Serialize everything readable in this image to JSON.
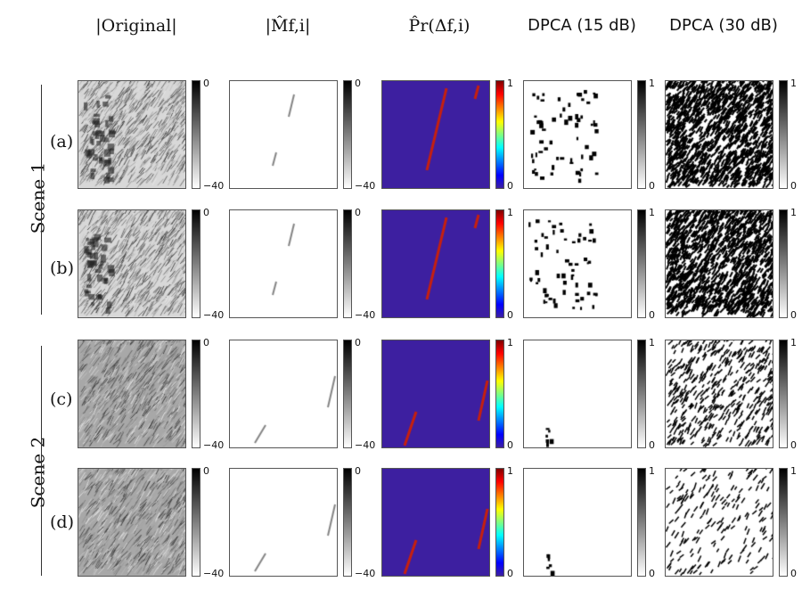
{
  "column_titles": [
    "|Original|",
    "|M̂f,i|",
    "P̂r(Δf,i)",
    "DPCA (15 dB)",
    "DPCA (30 dB)"
  ],
  "scenes": [
    {
      "label": "Scene 1",
      "rows": [
        "(a)",
        "(b)"
      ]
    },
    {
      "label": "Scene 2",
      "rows": [
        "(c)",
        "(d)"
      ]
    }
  ],
  "colorbars": {
    "db": {
      "top": "0",
      "bottom": "−40"
    },
    "prob": {
      "top": "1",
      "bottom": "0"
    },
    "dpca": {
      "top": "1",
      "bottom": "0"
    }
  },
  "colors": {
    "prob_background": "#3d1fa0",
    "prob_hot": "#c8200c"
  }
}
